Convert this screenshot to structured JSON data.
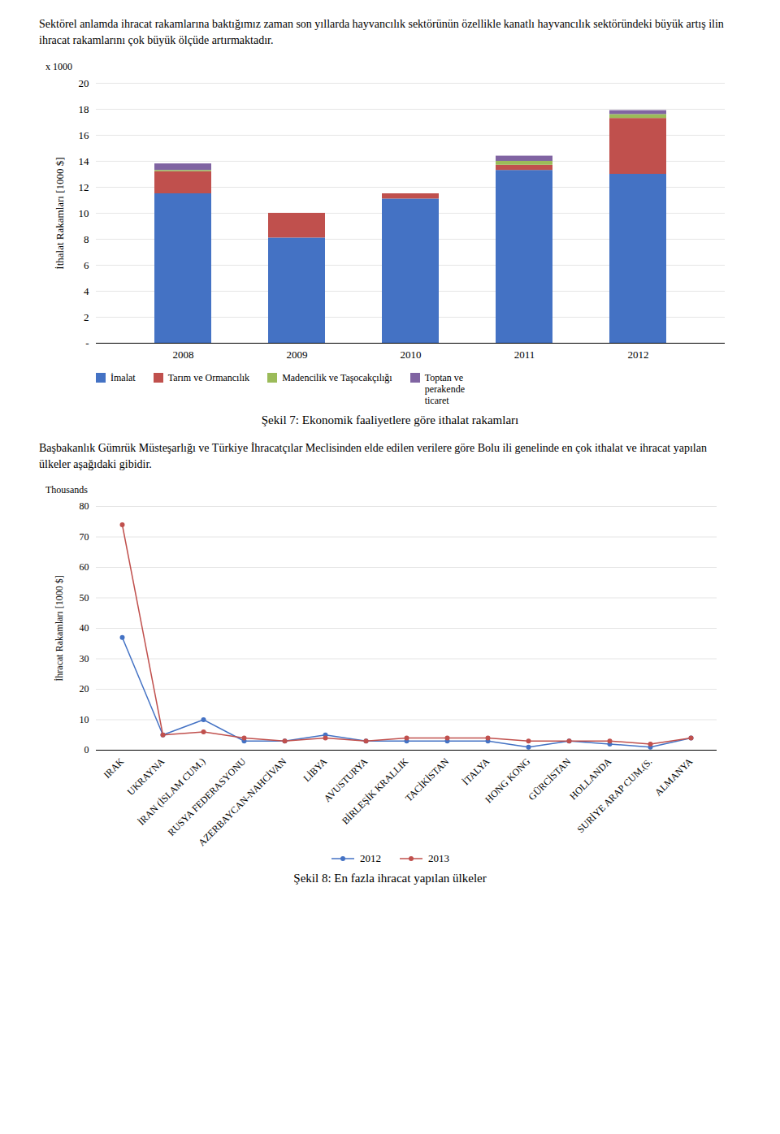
{
  "chart_data": [
    {
      "type": "bar",
      "stacked": true,
      "subtitle": "Sektörel anlamda ihracat rakamlarına baktığımız zaman son yıllarda hayvancılık sektörünün özellikle kanatlı hayvancılık sektöründeki büyük artış ilin ihracat rakamlarını çok büyük ölçüde artırmaktadır.",
      "caption": "Şekil 7: Ekonomik faaliyetlere göre ithalat rakamları",
      "annotation": "x 1000",
      "y_label": "İthalat Rakamları [1000 $]",
      "categories": [
        "2008",
        "2009",
        "2010",
        "2011",
        "2012"
      ],
      "series": [
        {
          "name": "İmalat",
          "color": "#4472C4",
          "values": [
            11.5,
            8.1,
            11.1,
            13.3,
            13.0
          ]
        },
        {
          "name": "Tarım ve Ormancılık",
          "color": "#C0504D",
          "values": [
            1.7,
            1.9,
            0.4,
            0.4,
            4.3
          ]
        },
        {
          "name": "Madencilik ve Taşocakçılığı",
          "color": "#9BBB59",
          "values": [
            0.1,
            0.0,
            0.0,
            0.3,
            0.3
          ]
        },
        {
          "name": "Toptan ve\nperakende\nticaret",
          "color": "#8064A2",
          "values": [
            0.5,
            0.0,
            0.0,
            0.4,
            0.3
          ]
        }
      ],
      "ylim": [
        0,
        20
      ],
      "yticks": [
        {
          "value": 0,
          "label": "-"
        },
        2,
        4,
        6,
        8,
        10,
        12,
        14,
        16,
        18,
        20
      ],
      "grid": true,
      "legend": "bottom"
    },
    {
      "type": "line",
      "subtitle": "Başbakanlık Gümrük Müsteşarlığı ve Türkiye İhracatçılar Meclisinden elde edilen verilere göre Bolu ili genelinde en çok ithalat ve ihracat yapılan ülkeler aşağıdaki gibidir.",
      "caption": "Şekil 8: En fazla ihracat yapılan ülkeler",
      "annotation": "Thousands",
      "y_label": "İhracat Rakamları [1000 $]",
      "categories": [
        "IRAK",
        "UKRAYNA",
        "İRAN (İSLAM CUM.)",
        "RUSYA FEDERASYONU",
        "AZERBAYCAN-NAHCİVAN",
        "LİBYA",
        "AVUSTURYA",
        "BİRLEŞİK KRALLIK",
        "TACİKİSTAN",
        "İTALYA",
        "HONG KONG",
        "GÜRCİSTAN",
        "HOLLANDA",
        "SURİYE ARAP CUM.(S.",
        "ALMANYA"
      ],
      "series": [
        {
          "name": "2012",
          "color": "#4472C4",
          "marker": "circle",
          "line_style": "solid",
          "values": [
            37,
            5,
            10,
            3,
            3,
            5,
            3,
            3,
            3,
            3,
            1,
            3,
            2,
            1,
            4
          ]
        },
        {
          "name": "2013",
          "color": "#C0504D",
          "marker": "circle",
          "line_style": "solid",
          "values": [
            74,
            5,
            6,
            4,
            3,
            4,
            3,
            4,
            4,
            4,
            3,
            3,
            3,
            2,
            4
          ]
        }
      ],
      "ylim": [
        0,
        80
      ],
      "yticks": [
        0,
        10,
        20,
        30,
        40,
        50,
        60,
        70,
        80
      ],
      "grid": true,
      "legend": "bottom"
    }
  ]
}
